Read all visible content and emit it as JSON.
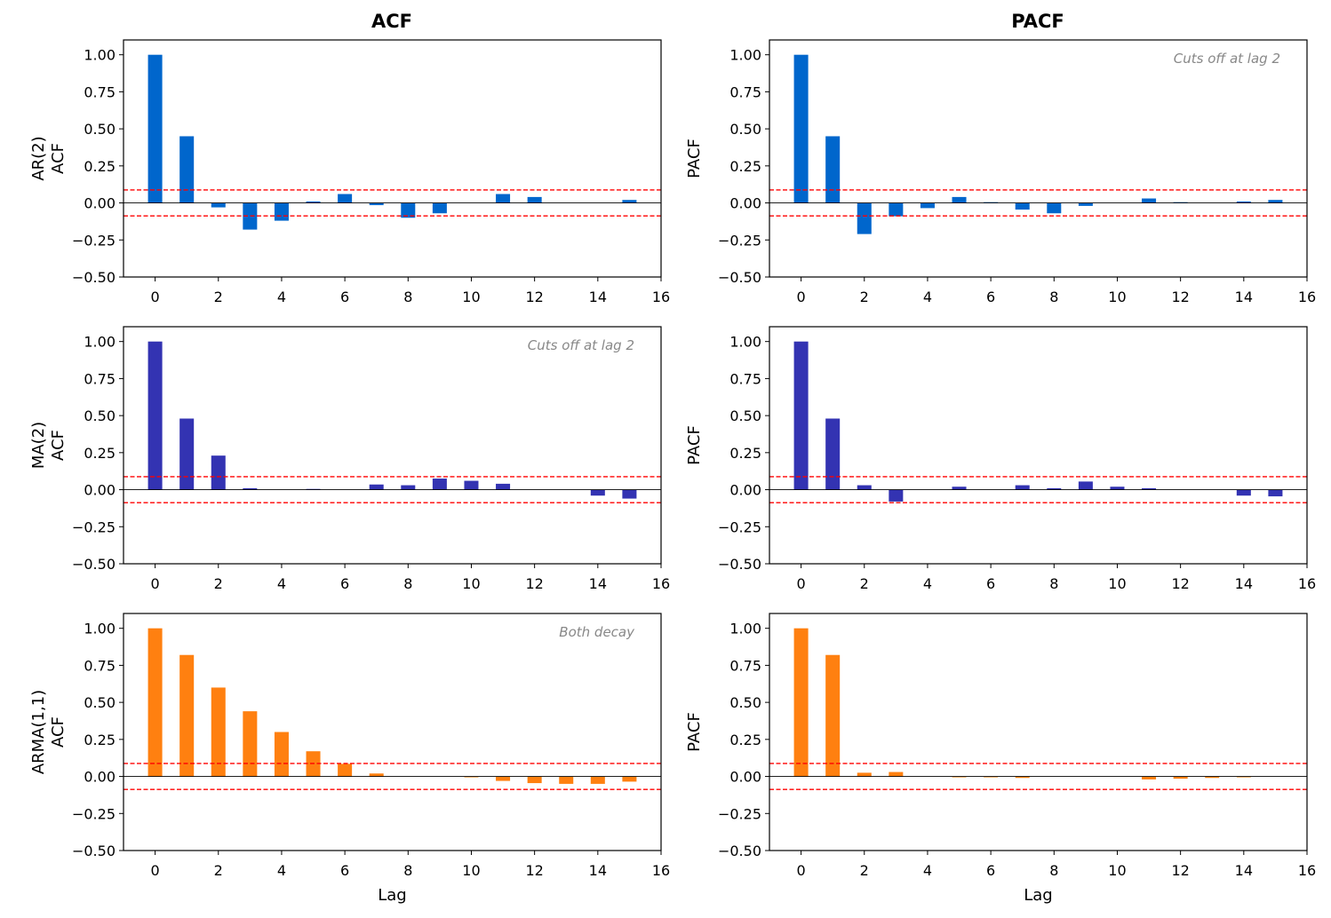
{
  "column_titles": [
    "ACF",
    "PACF"
  ],
  "row_labels": [
    [
      "AR(2)",
      "ACF"
    ],
    [
      "MA(2)",
      "ACF"
    ],
    [
      "ARMA(1,1)",
      "ACF"
    ]
  ],
  "pacf_ylabel": "PACF",
  "xlabel": "Lag",
  "confidence_band": 0.0877,
  "colors": {
    "ar": "#0066cc",
    "ma": "#3333b2",
    "arma": "#ff8010",
    "band": "#ff0000",
    "zero_line": "#000000",
    "annotation": "#888888"
  },
  "chart_data": [
    {
      "type": "bar",
      "id": "ar-acf",
      "title": "ACF",
      "ylabel": "AR(2)\nACF",
      "xlabel": "",
      "x": [
        0,
        1,
        2,
        3,
        4,
        5,
        6,
        7,
        8,
        9,
        10,
        11,
        12,
        13,
        14,
        15
      ],
      "values": [
        1.0,
        0.45,
        -0.03,
        -0.18,
        -0.12,
        0.01,
        0.06,
        -0.015,
        -0.1,
        -0.07,
        0.0,
        0.06,
        0.04,
        0.0,
        0.0,
        0.02
      ],
      "xlim": [
        -1,
        16
      ],
      "ylim": [
        -0.5,
        1.1
      ],
      "xticks": [
        "0",
        "2",
        "4",
        "6",
        "8",
        "10",
        "12",
        "14",
        "16"
      ],
      "yticks": [
        "−0.50",
        "−0.25",
        "0.00",
        "0.25",
        "0.50",
        "0.75",
        "1.00"
      ],
      "annotation": "",
      "color": "ar"
    },
    {
      "type": "bar",
      "id": "ar-pacf",
      "title": "PACF",
      "ylabel": "PACF",
      "xlabel": "",
      "x": [
        0,
        1,
        2,
        3,
        4,
        5,
        6,
        7,
        8,
        9,
        10,
        11,
        12,
        13,
        14,
        15
      ],
      "values": [
        1.0,
        0.45,
        -0.21,
        -0.09,
        -0.035,
        0.04,
        0.005,
        -0.045,
        -0.07,
        -0.02,
        0.0,
        0.03,
        0.005,
        0.0,
        0.01,
        0.02
      ],
      "xlim": [
        -1,
        16
      ],
      "ylim": [
        -0.5,
        1.1
      ],
      "xticks": [
        "0",
        "2",
        "4",
        "6",
        "8",
        "10",
        "12",
        "14",
        "16"
      ],
      "yticks": [
        "−0.50",
        "−0.25",
        "0.00",
        "0.25",
        "0.50",
        "0.75",
        "1.00"
      ],
      "annotation": "Cuts off at lag 2",
      "color": "ar"
    },
    {
      "type": "bar",
      "id": "ma-acf",
      "title": "",
      "ylabel": "MA(2)\nACF",
      "xlabel": "",
      "x": [
        0,
        1,
        2,
        3,
        4,
        5,
        6,
        7,
        8,
        9,
        10,
        11,
        12,
        13,
        14,
        15
      ],
      "values": [
        1.0,
        0.48,
        0.23,
        0.01,
        0.0,
        0.005,
        0.0,
        0.035,
        0.03,
        0.075,
        0.06,
        0.04,
        0.0,
        0.0,
        -0.04,
        -0.06
      ],
      "xlim": [
        -1,
        16
      ],
      "ylim": [
        -0.5,
        1.1
      ],
      "xticks": [
        "0",
        "2",
        "4",
        "6",
        "8",
        "10",
        "12",
        "14",
        "16"
      ],
      "yticks": [
        "−0.50",
        "−0.25",
        "0.00",
        "0.25",
        "0.50",
        "0.75",
        "1.00"
      ],
      "annotation": "Cuts off at lag 2",
      "color": "ma"
    },
    {
      "type": "bar",
      "id": "ma-pacf",
      "title": "",
      "ylabel": "PACF",
      "xlabel": "",
      "x": [
        0,
        1,
        2,
        3,
        4,
        5,
        6,
        7,
        8,
        9,
        10,
        11,
        12,
        13,
        14,
        15
      ],
      "values": [
        1.0,
        0.48,
        0.03,
        -0.08,
        0.0,
        0.02,
        0.0,
        0.03,
        0.01,
        0.055,
        0.02,
        0.01,
        0.0,
        0.0,
        -0.04,
        -0.045
      ],
      "xlim": [
        -1,
        16
      ],
      "ylim": [
        -0.5,
        1.1
      ],
      "xticks": [
        "0",
        "2",
        "4",
        "6",
        "8",
        "10",
        "12",
        "14",
        "16"
      ],
      "yticks": [
        "−0.50",
        "−0.25",
        "0.00",
        "0.25",
        "0.50",
        "0.75",
        "1.00"
      ],
      "annotation": "",
      "color": "ma"
    },
    {
      "type": "bar",
      "id": "arma-acf",
      "title": "",
      "ylabel": "ARMA(1,1)\nACF",
      "xlabel": "Lag",
      "x": [
        0,
        1,
        2,
        3,
        4,
        5,
        6,
        7,
        8,
        9,
        10,
        11,
        12,
        13,
        14,
        15
      ],
      "values": [
        1.0,
        0.82,
        0.6,
        0.44,
        0.3,
        0.17,
        0.085,
        0.02,
        0.0,
        0.0,
        -0.005,
        -0.03,
        -0.045,
        -0.05,
        -0.05,
        -0.035
      ],
      "xlim": [
        -1,
        16
      ],
      "ylim": [
        -0.5,
        1.1
      ],
      "xticks": [
        "0",
        "2",
        "4",
        "6",
        "8",
        "10",
        "12",
        "14",
        "16"
      ],
      "yticks": [
        "−0.50",
        "−0.25",
        "0.00",
        "0.25",
        "0.50",
        "0.75",
        "1.00"
      ],
      "annotation": "Both decay",
      "color": "arma"
    },
    {
      "type": "bar",
      "id": "arma-pacf",
      "title": "",
      "ylabel": "PACF",
      "xlabel": "Lag",
      "x": [
        0,
        1,
        2,
        3,
        4,
        5,
        6,
        7,
        8,
        9,
        10,
        11,
        12,
        13,
        14
      ],
      "values": [
        1.0,
        0.82,
        0.025,
        0.03,
        0.0,
        -0.003,
        -0.005,
        -0.01,
        0.0,
        0.0,
        0.0,
        -0.02,
        -0.015,
        -0.01,
        -0.005
      ],
      "xlim": [
        -1,
        16
      ],
      "ylim": [
        -0.5,
        1.1
      ],
      "xticks": [
        "0",
        "2",
        "4",
        "6",
        "8",
        "10",
        "12",
        "14",
        "16"
      ],
      "yticks": [
        "−0.50",
        "−0.25",
        "0.00",
        "0.25",
        "0.50",
        "0.75",
        "1.00"
      ],
      "annotation": "",
      "color": "arma"
    }
  ]
}
